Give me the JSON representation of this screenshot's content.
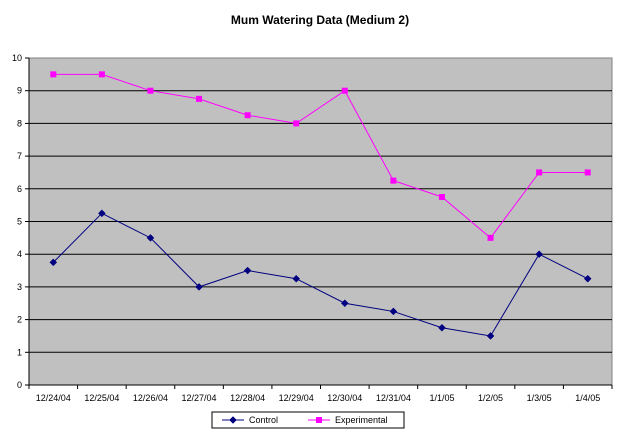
{
  "chart_data": {
    "type": "line",
    "title": "Mum Watering Data (Medium 2)",
    "xlabel": "",
    "ylabel": "",
    "categories": [
      "12/24/04",
      "12/25/04",
      "12/26/04",
      "12/27/04",
      "12/28/04",
      "12/29/04",
      "12/30/04",
      "12/31/04",
      "1/1/05",
      "1/2/05",
      "1/3/05",
      "1/4/05"
    ],
    "ylim": [
      0,
      10
    ],
    "yticks": [
      "0",
      "1",
      "2",
      "3",
      "4",
      "5",
      "6",
      "7",
      "8",
      "9",
      "10"
    ],
    "grid": true,
    "legend_position": "bottom",
    "plot_background": "#c0c0c0",
    "series": [
      {
        "name": "Control",
        "color": "#000080",
        "marker": "diamond",
        "values": [
          3.75,
          5.25,
          4.5,
          3.0,
          3.5,
          3.25,
          2.5,
          2.25,
          1.75,
          1.5,
          4.0,
          3.25
        ]
      },
      {
        "name": "Experimental",
        "color": "#ff00ff",
        "marker": "square",
        "values": [
          9.5,
          9.5,
          9.0,
          8.75,
          8.25,
          8.0,
          9.0,
          6.25,
          5.75,
          4.5,
          6.5,
          6.5
        ]
      }
    ]
  }
}
